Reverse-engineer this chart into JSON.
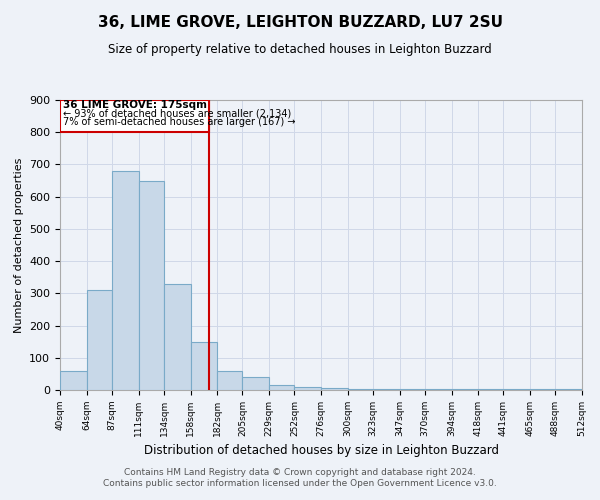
{
  "title": "36, LIME GROVE, LEIGHTON BUZZARD, LU7 2SU",
  "subtitle": "Size of property relative to detached houses in Leighton Buzzard",
  "xlabel": "Distribution of detached houses by size in Leighton Buzzard",
  "ylabel": "Number of detached properties",
  "bin_edges": [
    40,
    64,
    87,
    111,
    134,
    158,
    182,
    205,
    229,
    252,
    276,
    300,
    323,
    347,
    370,
    394,
    418,
    441,
    465,
    488,
    512
  ],
  "bar_heights": [
    60,
    310,
    680,
    650,
    330,
    150,
    60,
    40,
    15,
    8,
    5,
    4,
    3,
    3,
    3,
    2,
    2,
    2,
    2,
    2
  ],
  "bar_color": "#c8d8e8",
  "bar_edge_color": "#7aaac8",
  "grid_color": "#d0d8e8",
  "background_color": "#eef2f8",
  "red_line_x": 175,
  "annotation_text_line1": "36 LIME GROVE: 175sqm",
  "annotation_text_line2": "← 93% of detached houses are smaller (2,134)",
  "annotation_text_line3": "7% of semi-detached houses are larger (167) →",
  "annotation_box_color": "#cc0000",
  "ylim": [
    0,
    900
  ],
  "yticks": [
    0,
    100,
    200,
    300,
    400,
    500,
    600,
    700,
    800,
    900
  ],
  "footer_line1": "Contains HM Land Registry data © Crown copyright and database right 2024.",
  "footer_line2": "Contains public sector information licensed under the Open Government Licence v3.0."
}
